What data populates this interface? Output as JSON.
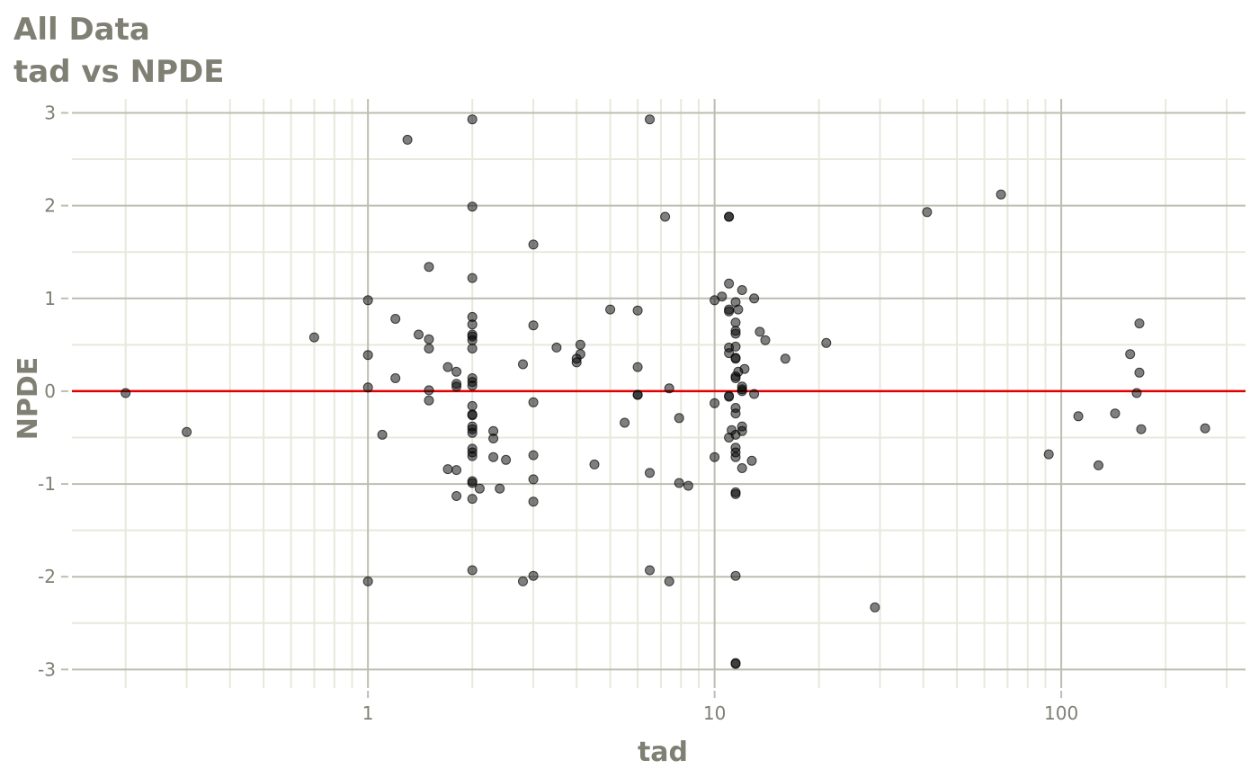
{
  "title": "All Data",
  "subtitle": "tad vs NPDE",
  "colors": {
    "background": "#ffffff",
    "grid_major": "#bdbdb2",
    "grid_minor": "#e8e8dc",
    "text": "#7f7f74",
    "point": "#000000",
    "reference_line": "#e00000"
  },
  "chart_data": {
    "type": "scatter",
    "title": "All Data",
    "subtitle": "tad vs NPDE",
    "xlabel": "tad",
    "ylabel": "NPDE",
    "x_scale": "log10",
    "xlim": [
      0.14,
      340
    ],
    "ylim": [
      -3.2,
      3.15
    ],
    "x_ticks": [
      1,
      10,
      100
    ],
    "x_tick_labels": [
      "1",
      "10",
      "100"
    ],
    "y_ticks": [
      -3,
      -2,
      -1,
      0,
      1,
      2,
      3
    ],
    "y_tick_labels": [
      "-3",
      "-2",
      "-1",
      "0",
      "1",
      "2",
      "3"
    ],
    "grid": true,
    "reference_line": {
      "y": 0
    },
    "points": [
      {
        "x": 0.2,
        "y": -0.02
      },
      {
        "x": 0.3,
        "y": -0.44
      },
      {
        "x": 0.7,
        "y": 0.58
      },
      {
        "x": 1.0,
        "y": 0.98
      },
      {
        "x": 1.0,
        "y": 0.39
      },
      {
        "x": 1.0,
        "y": 0.04
      },
      {
        "x": 1.0,
        "y": -2.05
      },
      {
        "x": 1.1,
        "y": -0.47
      },
      {
        "x": 1.2,
        "y": 0.78
      },
      {
        "x": 1.2,
        "y": 0.14
      },
      {
        "x": 1.3,
        "y": 2.71
      },
      {
        "x": 1.4,
        "y": 0.61
      },
      {
        "x": 1.5,
        "y": 1.34
      },
      {
        "x": 1.5,
        "y": 0.56
      },
      {
        "x": 1.5,
        "y": 0.46
      },
      {
        "x": 1.5,
        "y": 0.01
      },
      {
        "x": 1.5,
        "y": -0.1
      },
      {
        "x": 1.7,
        "y": 0.26
      },
      {
        "x": 1.7,
        "y": -0.84
      },
      {
        "x": 1.8,
        "y": 0.21
      },
      {
        "x": 1.8,
        "y": 0.08
      },
      {
        "x": 1.8,
        "y": 0.05
      },
      {
        "x": 1.8,
        "y": -0.85
      },
      {
        "x": 1.8,
        "y": -1.13
      },
      {
        "x": 2.0,
        "y": 2.93
      },
      {
        "x": 2.0,
        "y": 1.99
      },
      {
        "x": 2.0,
        "y": 1.22
      },
      {
        "x": 2.0,
        "y": 0.8
      },
      {
        "x": 2.0,
        "y": 0.72
      },
      {
        "x": 2.0,
        "y": 0.61
      },
      {
        "x": 2.0,
        "y": 0.59
      },
      {
        "x": 2.0,
        "y": 0.55
      },
      {
        "x": 2.0,
        "y": 0.46
      },
      {
        "x": 2.0,
        "y": 0.14
      },
      {
        "x": 2.0,
        "y": 0.1
      },
      {
        "x": 2.0,
        "y": 0.06
      },
      {
        "x": 2.0,
        "y": -0.16
      },
      {
        "x": 2.0,
        "y": -0.25
      },
      {
        "x": 2.0,
        "y": -0.26
      },
      {
        "x": 2.0,
        "y": -0.38
      },
      {
        "x": 2.0,
        "y": -0.41
      },
      {
        "x": 2.0,
        "y": -0.45
      },
      {
        "x": 2.0,
        "y": -0.62
      },
      {
        "x": 2.0,
        "y": -0.66
      },
      {
        "x": 2.0,
        "y": -0.7
      },
      {
        "x": 2.0,
        "y": -0.97
      },
      {
        "x": 2.0,
        "y": -0.99
      },
      {
        "x": 2.0,
        "y": -1.16
      },
      {
        "x": 2.0,
        "y": -1.93
      },
      {
        "x": 2.1,
        "y": -1.05
      },
      {
        "x": 2.3,
        "y": -0.43
      },
      {
        "x": 2.3,
        "y": -0.51
      },
      {
        "x": 2.3,
        "y": -0.71
      },
      {
        "x": 2.4,
        "y": -1.05
      },
      {
        "x": 2.5,
        "y": -0.74
      },
      {
        "x": 2.8,
        "y": 0.29
      },
      {
        "x": 2.8,
        "y": -2.05
      },
      {
        "x": 3.0,
        "y": 1.58
      },
      {
        "x": 3.0,
        "y": 0.71
      },
      {
        "x": 3.0,
        "y": -0.12
      },
      {
        "x": 3.0,
        "y": -0.69
      },
      {
        "x": 3.0,
        "y": -0.95
      },
      {
        "x": 3.0,
        "y": -1.19
      },
      {
        "x": 3.0,
        "y": -1.99
      },
      {
        "x": 3.5,
        "y": 0.47
      },
      {
        "x": 4.0,
        "y": 0.35
      },
      {
        "x": 4.0,
        "y": 0.31
      },
      {
        "x": 4.1,
        "y": 0.5
      },
      {
        "x": 4.1,
        "y": 0.4
      },
      {
        "x": 4.5,
        "y": -0.79
      },
      {
        "x": 5.0,
        "y": 0.88
      },
      {
        "x": 5.5,
        "y": -0.34
      },
      {
        "x": 6.0,
        "y": 0.87
      },
      {
        "x": 6.0,
        "y": 0.26
      },
      {
        "x": 6.0,
        "y": -0.04
      },
      {
        "x": 6.0,
        "y": -0.04
      },
      {
        "x": 6.5,
        "y": 2.93
      },
      {
        "x": 6.5,
        "y": -0.88
      },
      {
        "x": 6.5,
        "y": -1.93
      },
      {
        "x": 7.2,
        "y": 1.88
      },
      {
        "x": 7.4,
        "y": 0.03
      },
      {
        "x": 7.4,
        "y": -2.05
      },
      {
        "x": 7.9,
        "y": -0.29
      },
      {
        "x": 7.9,
        "y": -0.99
      },
      {
        "x": 8.4,
        "y": -1.02
      },
      {
        "x": 10.0,
        "y": 0.98
      },
      {
        "x": 10.0,
        "y": -0.13
      },
      {
        "x": 10.0,
        "y": -0.71
      },
      {
        "x": 10.5,
        "y": 1.02
      },
      {
        "x": 11.0,
        "y": 1.88
      },
      {
        "x": 11.0,
        "y": 1.88
      },
      {
        "x": 11.0,
        "y": 1.16
      },
      {
        "x": 11.0,
        "y": 0.88
      },
      {
        "x": 11.0,
        "y": 0.86
      },
      {
        "x": 11.0,
        "y": 0.47
      },
      {
        "x": 11.0,
        "y": 0.41
      },
      {
        "x": 11.0,
        "y": -0.05
      },
      {
        "x": 11.0,
        "y": -0.06
      },
      {
        "x": 11.0,
        "y": -0.5
      },
      {
        "x": 11.2,
        "y": -0.42
      },
      {
        "x": 11.5,
        "y": 0.96
      },
      {
        "x": 11.5,
        "y": 0.74
      },
      {
        "x": 11.5,
        "y": 0.65
      },
      {
        "x": 11.5,
        "y": 0.62
      },
      {
        "x": 11.5,
        "y": 0.48
      },
      {
        "x": 11.5,
        "y": 0.36
      },
      {
        "x": 11.5,
        "y": 0.35
      },
      {
        "x": 11.5,
        "y": 0.16
      },
      {
        "x": 11.5,
        "y": 0.14
      },
      {
        "x": 11.5,
        "y": -0.18
      },
      {
        "x": 11.5,
        "y": -0.24
      },
      {
        "x": 11.5,
        "y": -0.47
      },
      {
        "x": 11.5,
        "y": -0.61
      },
      {
        "x": 11.5,
        "y": -0.66
      },
      {
        "x": 11.5,
        "y": -0.71
      },
      {
        "x": 11.5,
        "y": -1.09
      },
      {
        "x": 11.5,
        "y": -1.11
      },
      {
        "x": 11.5,
        "y": -1.99
      },
      {
        "x": 11.5,
        "y": -2.93
      },
      {
        "x": 11.5,
        "y": -2.94
      },
      {
        "x": 11.7,
        "y": 0.88
      },
      {
        "x": 11.7,
        "y": 0.21
      },
      {
        "x": 12.0,
        "y": 1.09
      },
      {
        "x": 12.0,
        "y": 0.05
      },
      {
        "x": 12.0,
        "y": 0.02
      },
      {
        "x": 12.0,
        "y": 0.0
      },
      {
        "x": 12.0,
        "y": -0.38
      },
      {
        "x": 12.0,
        "y": -0.43
      },
      {
        "x": 12.0,
        "y": -0.83
      },
      {
        "x": 12.2,
        "y": 0.24
      },
      {
        "x": 13.0,
        "y": 1.0
      },
      {
        "x": 13.0,
        "y": -0.03
      },
      {
        "x": 12.8,
        "y": -0.75
      },
      {
        "x": 13.5,
        "y": 0.64
      },
      {
        "x": 14.0,
        "y": 0.55
      },
      {
        "x": 16.0,
        "y": 0.35
      },
      {
        "x": 21.0,
        "y": 0.52
      },
      {
        "x": 29.0,
        "y": -2.33
      },
      {
        "x": 41.0,
        "y": 1.93
      },
      {
        "x": 67.0,
        "y": 2.12
      },
      {
        "x": 92.0,
        "y": -0.68
      },
      {
        "x": 112.0,
        "y": -0.27
      },
      {
        "x": 128.0,
        "y": -0.8
      },
      {
        "x": 143.0,
        "y": -0.24
      },
      {
        "x": 158.0,
        "y": 0.4
      },
      {
        "x": 165.0,
        "y": -0.02
      },
      {
        "x": 168.0,
        "y": 0.73
      },
      {
        "x": 168.0,
        "y": 0.2
      },
      {
        "x": 170.0,
        "y": -0.41
      },
      {
        "x": 260.0,
        "y": -0.4
      }
    ]
  }
}
